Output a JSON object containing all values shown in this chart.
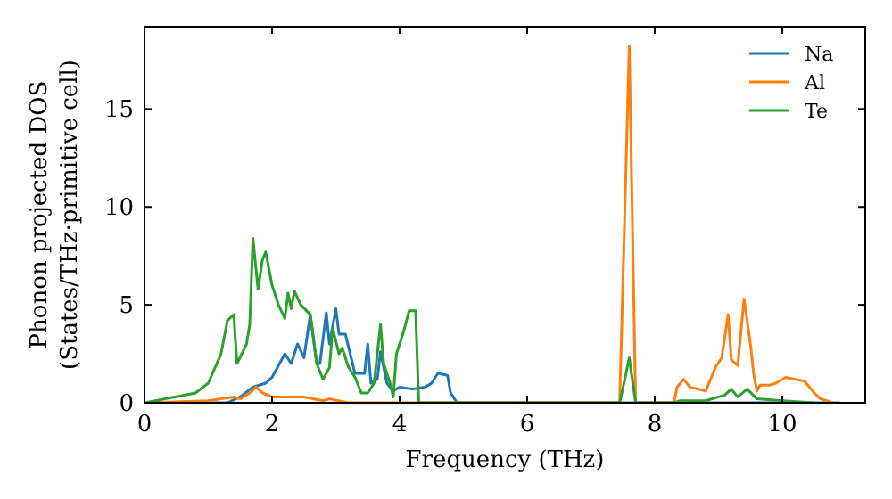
{
  "chart_data": {
    "type": "line",
    "xlabel": "Frequency (THz)",
    "ylabel": "Phonon projected DOS\n(States/THz·primitive cell)",
    "xlim": [
      0,
      11.3
    ],
    "ylim": [
      0,
      19.2
    ],
    "xticks": [
      0,
      2,
      4,
      6,
      8,
      10
    ],
    "yticks": [
      0,
      5,
      10,
      15
    ],
    "grid": false,
    "legend": "top right",
    "marker": "none",
    "line_style": "solid",
    "series": [
      {
        "name": "Na",
        "color": "#1f77b4",
        "x": [
          0,
          1.3,
          1.5,
          1.7,
          1.9,
          2.0,
          2.2,
          2.3,
          2.4,
          2.5,
          2.6,
          2.7,
          2.75,
          2.85,
          2.9,
          3.0,
          3.05,
          3.15,
          3.3,
          3.45,
          3.5,
          3.55,
          3.65,
          3.7,
          3.8,
          3.9,
          4.0,
          4.2,
          4.4,
          4.5,
          4.6,
          4.75,
          4.8,
          4.9,
          10.9
        ],
        "values": [
          0,
          0,
          0.3,
          0.8,
          1,
          1.3,
          2.5,
          2,
          3,
          2.3,
          4.5,
          2,
          2,
          4.6,
          3,
          4.8,
          3.5,
          3.5,
          1.5,
          1.5,
          3,
          1,
          1.2,
          2.6,
          1,
          0.6,
          0.8,
          0.7,
          0.8,
          1,
          1.5,
          1.4,
          0.5,
          0,
          0
        ]
      },
      {
        "name": "Al",
        "color": "#ff7f0e",
        "x": [
          0,
          1.0,
          1.4,
          1.5,
          1.65,
          1.75,
          1.85,
          2.0,
          2.5,
          2.8,
          2.9,
          3.2,
          7.45,
          7.6,
          7.7,
          8.3,
          8.35,
          8.45,
          8.55,
          8.8,
          8.95,
          9.05,
          9.15,
          9.2,
          9.3,
          9.4,
          9.5,
          9.55,
          9.6,
          9.65,
          9.8,
          9.9,
          10.05,
          10.2,
          10.35,
          10.5,
          10.6,
          10.8
        ],
        "values": [
          0,
          0.1,
          0.3,
          0.2,
          0.5,
          0.8,
          0.5,
          0.3,
          0.3,
          0.1,
          0.2,
          0,
          0,
          18.2,
          0,
          0,
          0.8,
          1.2,
          0.8,
          0.6,
          1.8,
          2.3,
          4.5,
          2.2,
          1.9,
          5.3,
          3,
          1.5,
          0.6,
          0.9,
          0.9,
          1,
          1.3,
          1.2,
          1.1,
          0.5,
          0.2,
          0
        ]
      },
      {
        "name": "Te",
        "color": "#2ca02c",
        "x": [
          0,
          0.8,
          1.0,
          1.2,
          1.3,
          1.4,
          1.45,
          1.6,
          1.65,
          1.7,
          1.78,
          1.85,
          1.9,
          2.0,
          2.1,
          2.2,
          2.25,
          2.3,
          2.35,
          2.45,
          2.6,
          2.7,
          2.8,
          2.9,
          2.95,
          3.05,
          3.1,
          3.2,
          3.3,
          3.4,
          3.5,
          3.6,
          3.7,
          3.75,
          3.85,
          3.9,
          3.95,
          4.05,
          4.15,
          4.25,
          4.3,
          7.45,
          7.55,
          7.6,
          7.7,
          8.3,
          8.4,
          8.8,
          9.0,
          9.1,
          9.2,
          9.3,
          9.45,
          9.6,
          10.0,
          10.5
        ],
        "values": [
          0,
          0.5,
          1,
          2.5,
          4.2,
          4.5,
          2,
          3,
          4,
          8.4,
          5.8,
          7.3,
          7.7,
          6,
          5,
          4.3,
          5.6,
          4.8,
          5.7,
          5,
          4.5,
          2,
          1.2,
          1.8,
          3.8,
          2.5,
          2.8,
          1.8,
          1.3,
          0.5,
          0.5,
          1,
          4,
          2,
          1,
          0.3,
          2.5,
          3.5,
          4.7,
          4.7,
          0,
          0,
          1.5,
          2.3,
          0,
          0,
          0.1,
          0.1,
          0.3,
          0.4,
          0.7,
          0.3,
          0.7,
          0.2,
          0.1,
          0
        ]
      }
    ]
  }
}
